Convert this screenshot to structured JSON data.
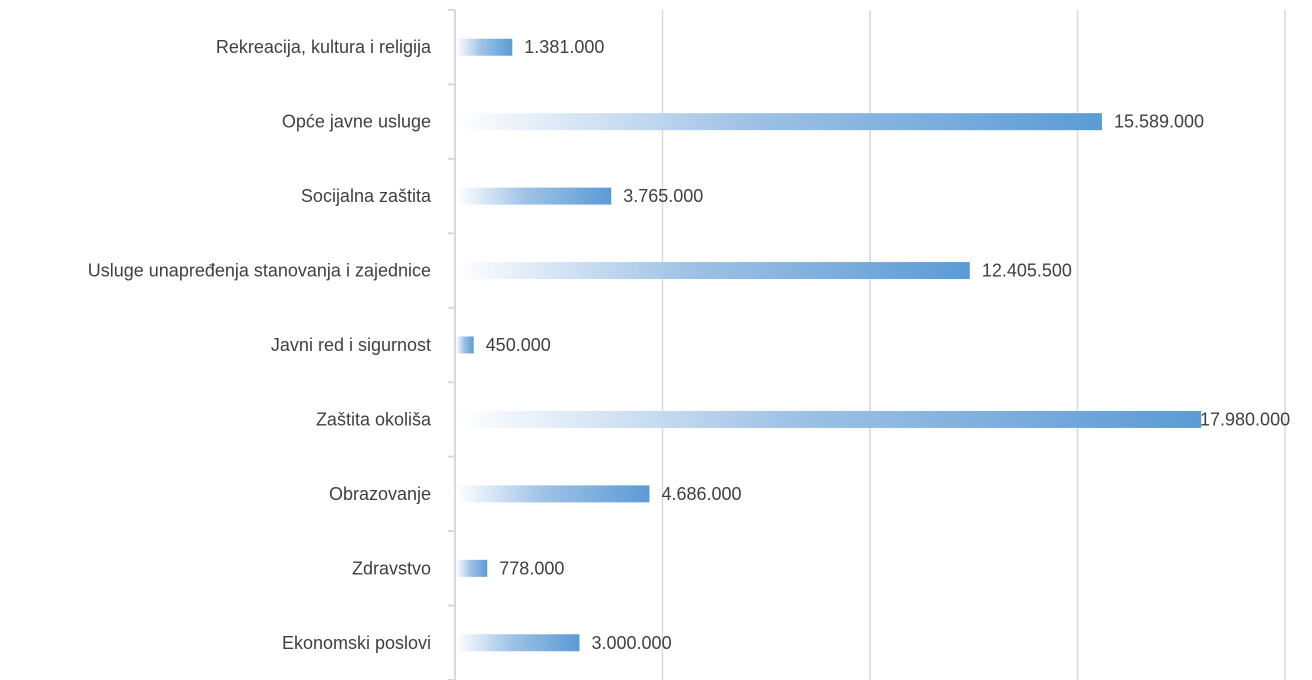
{
  "chart_data": {
    "type": "bar",
    "orientation": "horizontal",
    "categories": [
      "Rekreacija, kultura i religija",
      "Opće javne usluge",
      "Socijalna zaštita",
      "Usluge unapređenja stanovanja i zajednice",
      "Javni red i sigurnost",
      "Zaštita okoliša",
      "Obrazovanje",
      "Zdravstvo",
      "Ekonomski poslovi"
    ],
    "values": [
      1381000,
      15589000,
      3765000,
      12405500,
      450000,
      17980000,
      4686000,
      778000,
      3000000
    ],
    "data_labels": [
      "1.381.000",
      "15.589.000",
      "3.765.000",
      "12.405.500",
      "450.000",
      "17.980.000",
      "4.686.000",
      "778.000",
      "3.000.000"
    ],
    "xlim": [
      0,
      20000000
    ],
    "gridlines_x": [
      5000000,
      10000000,
      15000000,
      20000000
    ],
    "grid": true,
    "legend": "none",
    "bar_color": "#5b9bd5"
  }
}
